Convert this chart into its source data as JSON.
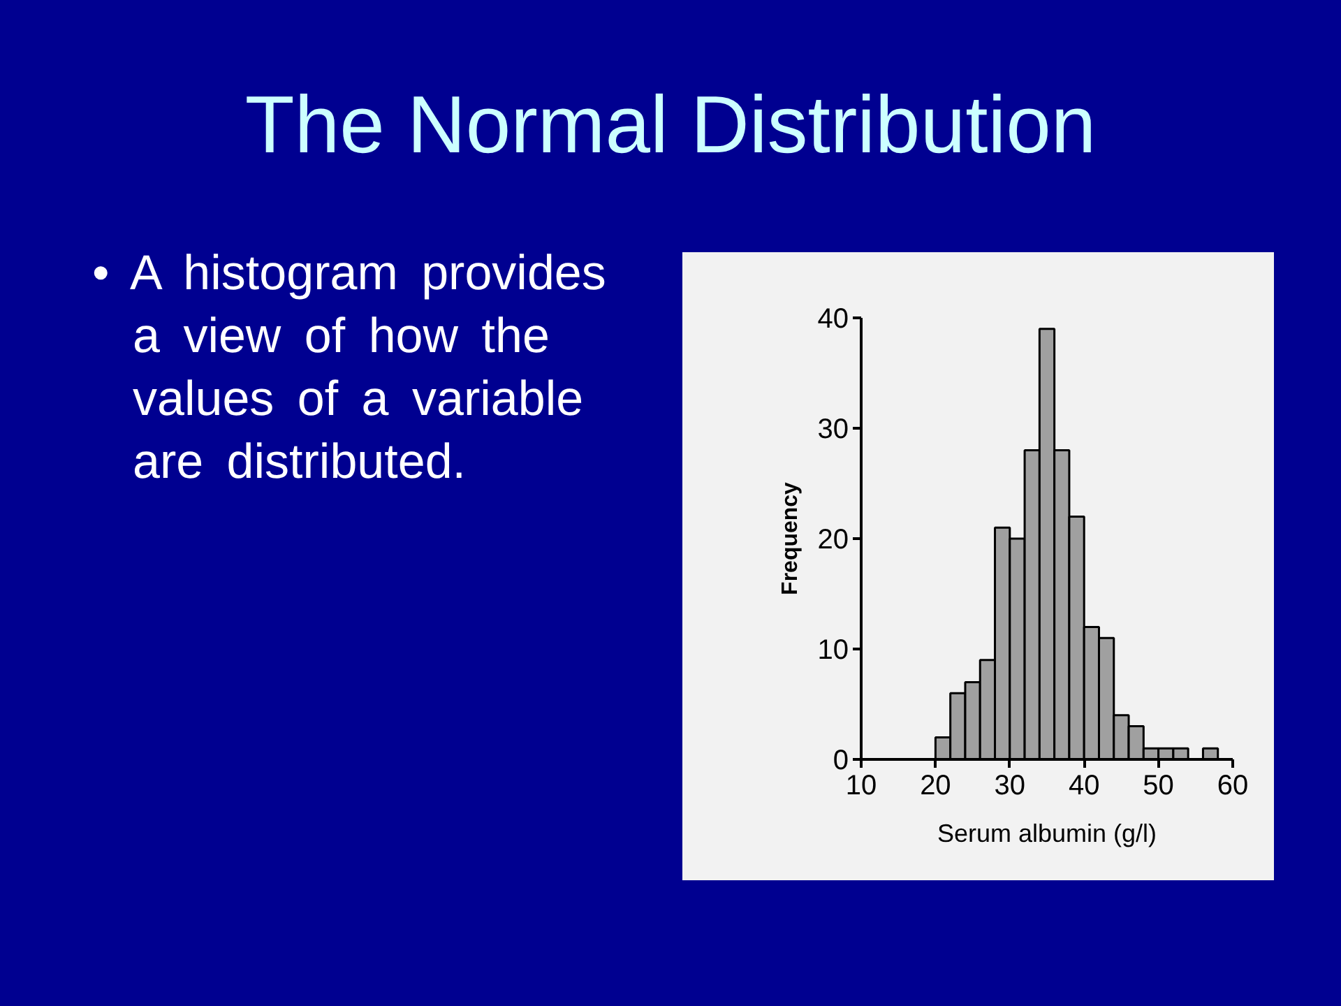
{
  "chart_data": {
    "type": "histogram",
    "title": "The Normal Distribution",
    "annotations": [
      "• A histogram provides a view of how the values of a variable are distributed."
    ],
    "xlabel": "Serum albumin (g/l)",
    "ylabel": "Frequency",
    "bins": [
      20,
      22,
      24,
      26,
      28,
      30,
      32,
      34,
      36,
      38,
      40,
      42,
      44,
      46,
      48,
      50,
      52,
      54,
      56,
      58,
      60
    ],
    "values": [
      2,
      6,
      7,
      9,
      21,
      20,
      28,
      39,
      28,
      22,
      12,
      11,
      4,
      3,
      1,
      1,
      1,
      0,
      1,
      0
    ],
    "color": "#a0a0a0",
    "xlim": [
      10,
      60
    ],
    "ylim": [
      0,
      40
    ],
    "xticks": [
      10,
      20,
      30,
      40,
      50,
      60
    ],
    "yticks": [
      0,
      10,
      20,
      30,
      40
    ],
    "grid": false
  }
}
